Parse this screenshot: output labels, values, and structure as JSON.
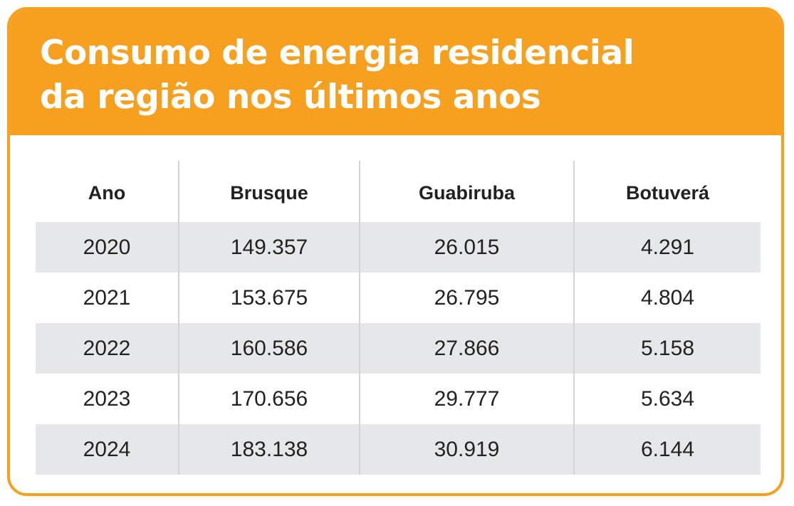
{
  "title_lines": [
    "Consumo de energia residencial",
    "da região nos últimos anos"
  ],
  "colors": {
    "accent": "#f7a020",
    "row_shade": "#e6e7e9",
    "divider": "#d3d4d6",
    "text": "#222222"
  },
  "chart_data": {
    "type": "table",
    "title": "Consumo de energia residencial da região nos últimos anos",
    "columns": [
      "Ano",
      "Brusque",
      "Guabiruba",
      "Botuverá"
    ],
    "rows": [
      [
        "2020",
        "149.357",
        "26.015",
        "4.291"
      ],
      [
        "2021",
        "153.675",
        "26.795",
        "4.804"
      ],
      [
        "2022",
        "160.586",
        "27.866",
        "5.158"
      ],
      [
        "2023",
        "170.656",
        "29.777",
        "5.634"
      ],
      [
        "2024",
        "183.138",
        "30.919",
        "6.144"
      ]
    ]
  }
}
